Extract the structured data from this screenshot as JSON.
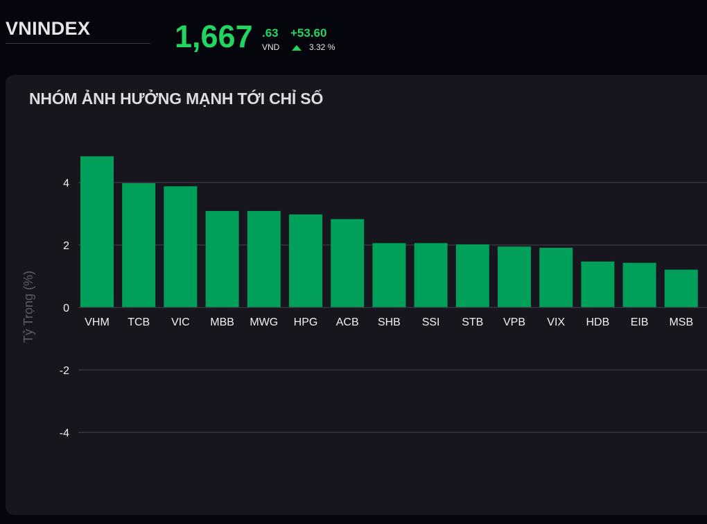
{
  "header": {
    "index_name": "VNINDEX",
    "price_main": "1,667",
    "price_decimal": ".63",
    "currency": "VND",
    "change_value": "+53.60",
    "change_percent": "3.32 %",
    "direction_icon": "triangle-up-icon",
    "positive_color": "#22d460"
  },
  "panel": {
    "title": "NHÓM ẢNH HƯỞNG MẠNH TỚI CHỈ SỐ"
  },
  "chart_data": {
    "type": "bar",
    "title": "NHÓM ẢNH HƯỞNG MẠNH TỚI CHỈ SỐ",
    "xlabel": "",
    "ylabel": "Tỷ Trọng (%)",
    "ylim": [
      -5,
      5
    ],
    "yticks": [
      4,
      2,
      0,
      -2,
      -4
    ],
    "grid": true,
    "bar_color": "#00a05a",
    "categories": [
      "VHM",
      "TCB",
      "VIC",
      "MBB",
      "MWG",
      "HPG",
      "ACB",
      "SHB",
      "SSI",
      "STB",
      "VPB",
      "VIX",
      "HDB",
      "EIB",
      "MSB"
    ],
    "values": [
      4.84,
      3.98,
      3.88,
      3.09,
      3.09,
      2.98,
      2.83,
      2.06,
      2.06,
      2.02,
      1.95,
      1.91,
      1.47,
      1.43,
      1.21
    ]
  }
}
